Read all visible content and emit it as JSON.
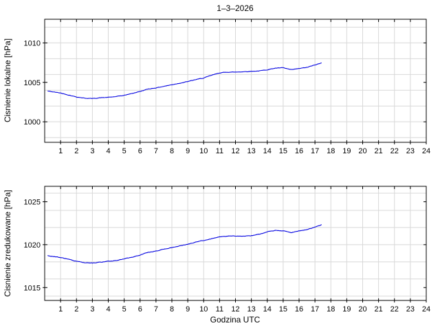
{
  "figure": {
    "title": "1–3–2026",
    "xlabel": "Godzina UTC",
    "background": "#ffffff"
  },
  "colors": {
    "line": "#0000e0",
    "grid": "#d8d8d8",
    "frame": "#000000",
    "text": "#000000"
  },
  "chart_data": [
    {
      "type": "line",
      "title": "1–3–2026",
      "ylabel": "Cisnienie lokalne [hPa]",
      "xlabel": "",
      "xlim": [
        0,
        24
      ],
      "ylim": [
        997.4,
        1013.0
      ],
      "xticks": [
        1,
        2,
        3,
        4,
        5,
        6,
        7,
        8,
        9,
        10,
        11,
        12,
        13,
        14,
        15,
        16,
        17,
        18,
        19,
        20,
        21,
        22,
        23,
        24
      ],
      "yticks": [
        1000,
        1005,
        1010
      ],
      "grid": true,
      "xgrid_step": 1,
      "ygrid_step": 2,
      "legend": null,
      "series": [
        {
          "name": "cisnienie lokalne",
          "points": [
            [
              0.2,
              1003.9
            ],
            [
              0.5,
              1003.8
            ],
            [
              1.0,
              1003.65
            ],
            [
              1.5,
              1003.4
            ],
            [
              2.0,
              1003.15
            ],
            [
              2.5,
              1003.0
            ],
            [
              3.0,
              1002.95
            ],
            [
              3.5,
              1003.05
            ],
            [
              4.0,
              1003.1
            ],
            [
              4.5,
              1003.2
            ],
            [
              5.0,
              1003.35
            ],
            [
              5.5,
              1003.6
            ],
            [
              6.0,
              1003.85
            ],
            [
              6.5,
              1004.15
            ],
            [
              7.0,
              1004.3
            ],
            [
              7.5,
              1004.5
            ],
            [
              8.0,
              1004.7
            ],
            [
              8.5,
              1004.9
            ],
            [
              9.0,
              1005.1
            ],
            [
              9.5,
              1005.35
            ],
            [
              10.0,
              1005.55
            ],
            [
              10.5,
              1005.9
            ],
            [
              11.0,
              1006.2
            ],
            [
              11.5,
              1006.3
            ],
            [
              12.0,
              1006.3
            ],
            [
              12.5,
              1006.35
            ],
            [
              13.0,
              1006.4
            ],
            [
              13.5,
              1006.45
            ],
            [
              14.0,
              1006.6
            ],
            [
              14.5,
              1006.8
            ],
            [
              15.0,
              1006.85
            ],
            [
              15.5,
              1006.6
            ],
            [
              16.0,
              1006.75
            ],
            [
              16.5,
              1006.9
            ],
            [
              17.0,
              1007.2
            ],
            [
              17.4,
              1007.45
            ]
          ]
        }
      ]
    },
    {
      "type": "line",
      "title": "",
      "ylabel": "Cisnienie zredukowane [hPa]",
      "xlabel": "Godzina UTC",
      "xlim": [
        0,
        24
      ],
      "ylim": [
        1013.5,
        1026.8
      ],
      "xticks": [
        1,
        2,
        3,
        4,
        5,
        6,
        7,
        8,
        9,
        10,
        11,
        12,
        13,
        14,
        15,
        16,
        17,
        18,
        19,
        20,
        21,
        22,
        23,
        24
      ],
      "yticks": [
        1015,
        1020,
        1025
      ],
      "grid": true,
      "xgrid_step": 1,
      "ygrid_step": 2,
      "legend": null,
      "series": [
        {
          "name": "cisnienie zredukowane",
          "points": [
            [
              0.2,
              1018.7
            ],
            [
              0.5,
              1018.65
            ],
            [
              1.0,
              1018.5
            ],
            [
              1.5,
              1018.3
            ],
            [
              2.0,
              1018.05
            ],
            [
              2.5,
              1017.9
            ],
            [
              3.0,
              1017.85
            ],
            [
              3.5,
              1017.95
            ],
            [
              4.0,
              1018.05
            ],
            [
              4.5,
              1018.15
            ],
            [
              5.0,
              1018.35
            ],
            [
              5.5,
              1018.55
            ],
            [
              6.0,
              1018.8
            ],
            [
              6.5,
              1019.1
            ],
            [
              7.0,
              1019.25
            ],
            [
              7.5,
              1019.45
            ],
            [
              8.0,
              1019.65
            ],
            [
              8.5,
              1019.85
            ],
            [
              9.0,
              1020.05
            ],
            [
              9.5,
              1020.3
            ],
            [
              10.0,
              1020.5
            ],
            [
              10.5,
              1020.7
            ],
            [
              11.0,
              1020.9
            ],
            [
              11.5,
              1021.0
            ],
            [
              12.0,
              1021.0
            ],
            [
              12.5,
              1021.0
            ],
            [
              13.0,
              1021.05
            ],
            [
              13.5,
              1021.2
            ],
            [
              14.0,
              1021.5
            ],
            [
              14.5,
              1021.65
            ],
            [
              15.0,
              1021.6
            ],
            [
              15.5,
              1021.4
            ],
            [
              16.0,
              1021.6
            ],
            [
              16.5,
              1021.75
            ],
            [
              17.0,
              1022.05
            ],
            [
              17.4,
              1022.3
            ]
          ]
        }
      ]
    }
  ]
}
